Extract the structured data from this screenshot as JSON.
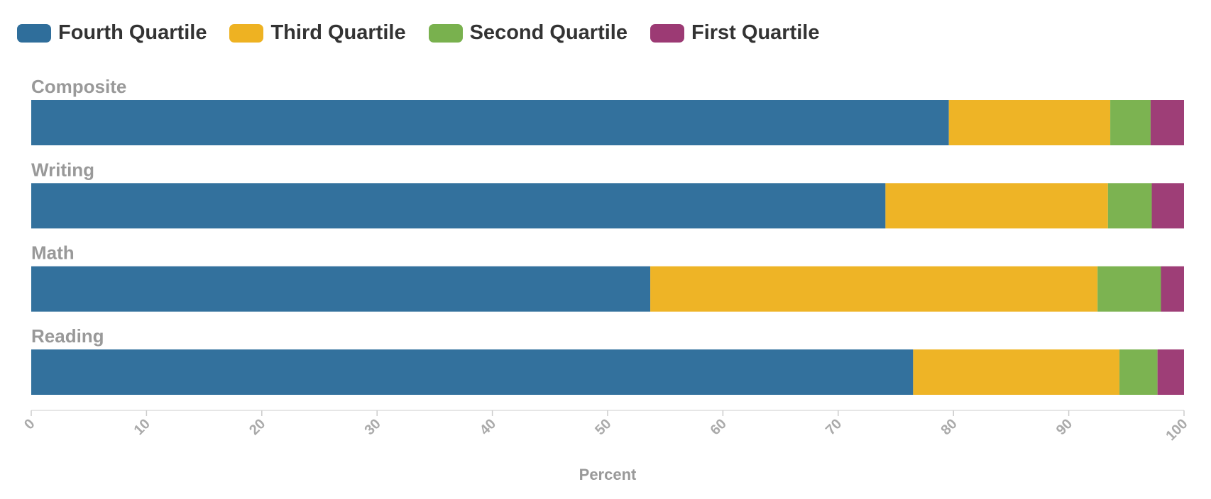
{
  "chart_data": {
    "type": "bar",
    "orientation": "horizontal",
    "stacked": true,
    "categories": [
      "Composite",
      "Writing",
      "Math",
      "Reading"
    ],
    "series": [
      {
        "name": "Fourth Quartile",
        "color": "#2F6E9B",
        "values": [
          79.6,
          74.1,
          53.7,
          76.5
        ]
      },
      {
        "name": "Third Quartile",
        "color": "#EEB222",
        "values": [
          14.0,
          19.3,
          38.8,
          17.9
        ]
      },
      {
        "name": "Second Quartile",
        "color": "#79B14E",
        "values": [
          3.5,
          3.8,
          5.5,
          3.3
        ]
      },
      {
        "name": "First Quartile",
        "color": "#9C3A74",
        "values": [
          2.9,
          2.8,
          2.0,
          2.3
        ]
      }
    ],
    "xlabel": "Percent",
    "xlim": [
      0,
      100
    ],
    "xticks": [
      "0",
      "10",
      "20",
      "30",
      "40",
      "50",
      "60",
      "70",
      "80",
      "90",
      "100"
    ],
    "legend_position": "top-left",
    "grid": false
  }
}
